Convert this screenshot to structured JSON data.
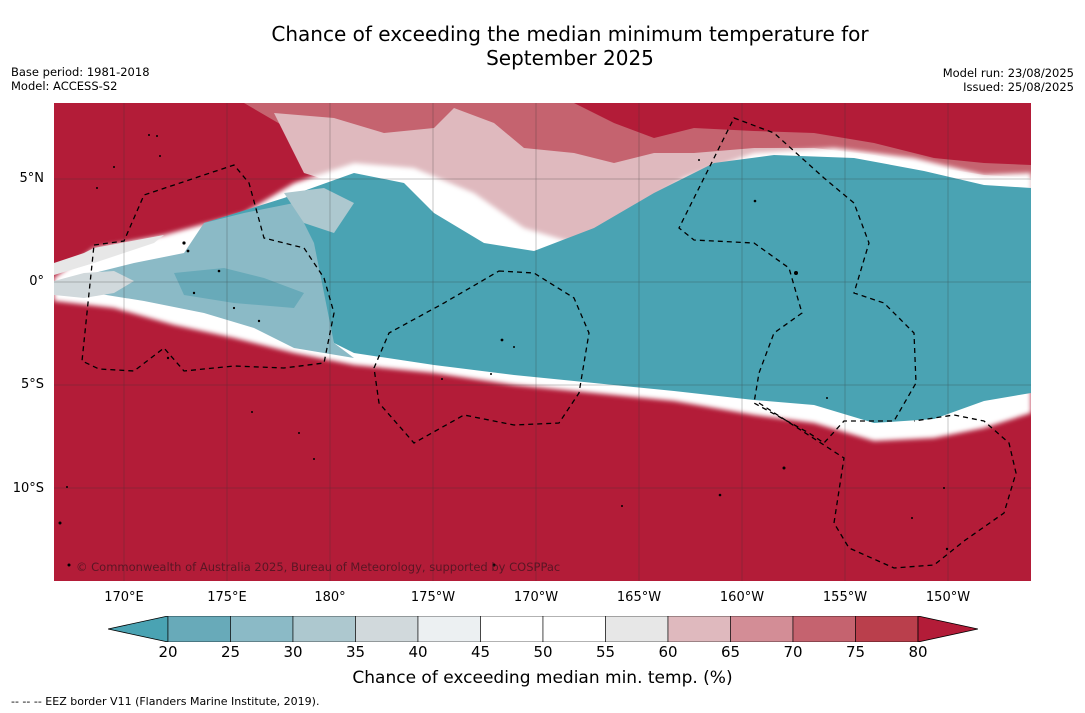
{
  "title_line1": "Chance of exceeding the median minimum temperature for",
  "title_line2": "September 2025",
  "base_period": "Base period: 1981-2018",
  "model": "Model: ACCESS-S2",
  "model_run": "Model run: 23/08/2025",
  "issued": "Issued: 25/08/2025",
  "copyright": "© Commonwealth of Australia 2025, Bureau of Meteorology, supported by COSPPac",
  "lat_labels": [
    "5°N",
    "0°",
    "5°S",
    "10°S"
  ],
  "lon_labels": [
    "170°E",
    "175°E",
    "180°",
    "175°W",
    "170°W",
    "165°W",
    "160°W",
    "155°W",
    "150°W"
  ],
  "colorbar": {
    "ticks": [
      "20",
      "25",
      "30",
      "35",
      "40",
      "45",
      "50",
      "55",
      "60",
      "65",
      "70",
      "75",
      "80"
    ],
    "colors": [
      "#4aa3b3",
      "#68aab9",
      "#8bbac6",
      "#adc8cf",
      "#d1d9dc",
      "#ecf0f2",
      "#ffffff",
      "#ffffff",
      "#e7e7e7",
      "#dfb9be",
      "#d38d96",
      "#c5636f",
      "#ba3f4c",
      "#b31c38"
    ],
    "label": "Chance of exceeding median min. temp. (%)"
  },
  "footnote": "--  --  -- EEZ border V11 (Flanders Marine Institute, 2019)."
}
